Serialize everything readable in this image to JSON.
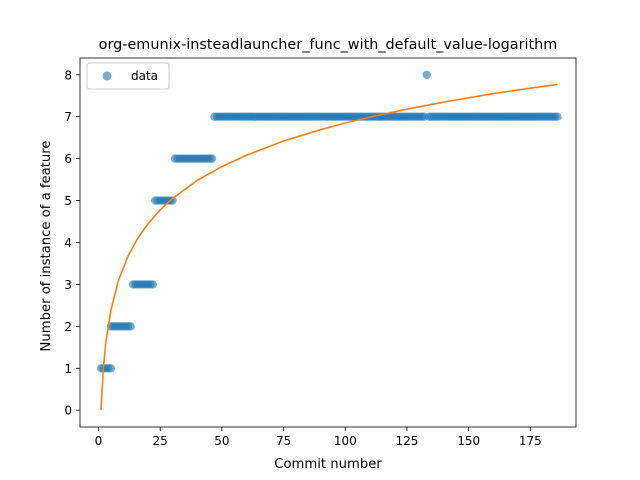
{
  "chart_data": {
    "type": "scatter",
    "title": "org-emunix-insteadlauncher_func_with_default_value-logarithm",
    "xlabel": "Commit number",
    "ylabel": "Number of instance of a feature",
    "xlim": [
      -7.5,
      193.5
    ],
    "ylim": [
      -0.4,
      8.4
    ],
    "xticks": [
      0,
      25,
      50,
      75,
      100,
      125,
      150,
      175
    ],
    "yticks": [
      0,
      1,
      2,
      3,
      4,
      5,
      6,
      7,
      8
    ],
    "grid": false,
    "legend_position": "top-left",
    "colors": {
      "data": "#1f77b4",
      "fit": "#ff7f0e"
    },
    "series": [
      {
        "name": "data",
        "kind": "scatter",
        "points": [
          [
            1,
            1
          ],
          [
            2,
            1
          ],
          [
            3,
            1
          ],
          [
            4,
            1
          ],
          [
            5,
            1
          ],
          [
            5,
            2
          ],
          [
            6,
            2
          ],
          [
            7,
            2
          ],
          [
            8,
            2
          ],
          [
            9,
            2
          ],
          [
            10,
            2
          ],
          [
            11,
            2
          ],
          [
            12,
            2
          ],
          [
            13,
            2
          ],
          [
            14,
            3
          ],
          [
            15,
            3
          ],
          [
            16,
            3
          ],
          [
            17,
            3
          ],
          [
            18,
            3
          ],
          [
            19,
            3
          ],
          [
            20,
            3
          ],
          [
            21,
            3
          ],
          [
            22,
            3
          ],
          [
            23,
            5
          ],
          [
            24,
            5
          ],
          [
            25,
            5
          ],
          [
            26,
            5
          ],
          [
            27,
            5
          ],
          [
            28,
            5
          ],
          [
            29,
            5
          ],
          [
            30,
            5
          ],
          [
            31,
            6
          ],
          [
            32,
            6
          ],
          [
            33,
            6
          ],
          [
            34,
            6
          ],
          [
            35,
            6
          ],
          [
            36,
            6
          ],
          [
            37,
            6
          ],
          [
            38,
            6
          ],
          [
            39,
            6
          ],
          [
            40,
            6
          ],
          [
            41,
            6
          ],
          [
            42,
            6
          ],
          [
            43,
            6
          ],
          [
            44,
            6
          ],
          [
            45,
            6
          ],
          [
            46,
            6
          ],
          [
            47,
            7
          ],
          [
            48,
            7
          ],
          [
            49,
            7
          ],
          [
            50,
            7
          ],
          [
            51,
            7
          ],
          [
            52,
            7
          ],
          [
            53,
            7
          ],
          [
            54,
            7
          ],
          [
            55,
            7
          ],
          [
            56,
            7
          ],
          [
            57,
            7
          ],
          [
            58,
            7
          ],
          [
            59,
            7
          ],
          [
            60,
            7
          ],
          [
            61,
            7
          ],
          [
            62,
            7
          ],
          [
            63,
            7
          ],
          [
            64,
            7
          ],
          [
            65,
            7
          ],
          [
            66,
            7
          ],
          [
            67,
            7
          ],
          [
            68,
            7
          ],
          [
            69,
            7
          ],
          [
            70,
            7
          ],
          [
            71,
            7
          ],
          [
            72,
            7
          ],
          [
            73,
            7
          ],
          [
            74,
            7
          ],
          [
            75,
            7
          ],
          [
            76,
            7
          ],
          [
            77,
            7
          ],
          [
            78,
            7
          ],
          [
            79,
            7
          ],
          [
            80,
            7
          ],
          [
            81,
            7
          ],
          [
            82,
            7
          ],
          [
            83,
            7
          ],
          [
            84,
            7
          ],
          [
            85,
            7
          ],
          [
            86,
            7
          ],
          [
            87,
            7
          ],
          [
            88,
            7
          ],
          [
            89,
            7
          ],
          [
            90,
            7
          ],
          [
            91,
            7
          ],
          [
            92,
            7
          ],
          [
            93,
            7
          ],
          [
            94,
            7
          ],
          [
            95,
            7
          ],
          [
            96,
            7
          ],
          [
            97,
            7
          ],
          [
            98,
            7
          ],
          [
            99,
            7
          ],
          [
            100,
            7
          ],
          [
            101,
            7
          ],
          [
            102,
            7
          ],
          [
            103,
            7
          ],
          [
            104,
            7
          ],
          [
            105,
            7
          ],
          [
            106,
            7
          ],
          [
            107,
            7
          ],
          [
            108,
            7
          ],
          [
            109,
            7
          ],
          [
            110,
            7
          ],
          [
            111,
            7
          ],
          [
            112,
            7
          ],
          [
            113,
            7
          ],
          [
            114,
            7
          ],
          [
            115,
            7
          ],
          [
            116,
            7
          ],
          [
            117,
            7
          ],
          [
            118,
            7
          ],
          [
            119,
            7
          ],
          [
            120,
            7
          ],
          [
            121,
            7
          ],
          [
            122,
            7
          ],
          [
            123,
            7
          ],
          [
            124,
            7
          ],
          [
            125,
            7
          ],
          [
            126,
            7
          ],
          [
            127,
            7
          ],
          [
            128,
            7
          ],
          [
            129,
            7
          ],
          [
            130,
            7
          ],
          [
            131,
            7
          ],
          [
            132,
            7
          ],
          [
            133,
            8
          ],
          [
            134,
            7
          ],
          [
            135,
            7
          ],
          [
            136,
            7
          ],
          [
            137,
            7
          ],
          [
            138,
            7
          ],
          [
            139,
            7
          ],
          [
            140,
            7
          ],
          [
            141,
            7
          ],
          [
            142,
            7
          ],
          [
            143,
            7
          ],
          [
            144,
            7
          ],
          [
            145,
            7
          ],
          [
            146,
            7
          ],
          [
            147,
            7
          ],
          [
            148,
            7
          ],
          [
            149,
            7
          ],
          [
            150,
            7
          ],
          [
            151,
            7
          ],
          [
            152,
            7
          ],
          [
            153,
            7
          ],
          [
            154,
            7
          ],
          [
            155,
            7
          ],
          [
            156,
            7
          ],
          [
            157,
            7
          ],
          [
            158,
            7
          ],
          [
            159,
            7
          ],
          [
            160,
            7
          ],
          [
            161,
            7
          ],
          [
            162,
            7
          ],
          [
            163,
            7
          ],
          [
            164,
            7
          ],
          [
            165,
            7
          ],
          [
            166,
            7
          ],
          [
            167,
            7
          ],
          [
            168,
            7
          ],
          [
            169,
            7
          ],
          [
            170,
            7
          ],
          [
            171,
            7
          ],
          [
            172,
            7
          ],
          [
            173,
            7
          ],
          [
            174,
            7
          ],
          [
            175,
            7
          ],
          [
            176,
            7
          ],
          [
            177,
            7
          ],
          [
            178,
            7
          ],
          [
            179,
            7
          ],
          [
            180,
            7
          ],
          [
            181,
            7
          ],
          [
            182,
            7
          ],
          [
            183,
            7
          ],
          [
            184,
            7
          ],
          [
            185,
            7
          ],
          [
            186,
            7
          ]
        ]
      },
      {
        "kind": "line",
        "model": "logarithm",
        "points": [
          [
            1,
            0
          ],
          [
            2,
            1.03
          ],
          [
            3,
            1.63
          ],
          [
            5,
            2.38
          ],
          [
            8,
            3.08
          ],
          [
            12,
            3.68
          ],
          [
            16,
            4.11
          ],
          [
            20,
            4.44
          ],
          [
            25,
            4.78
          ],
          [
            30,
            5.05
          ],
          [
            40,
            5.48
          ],
          [
            50,
            5.81
          ],
          [
            60,
            6.08
          ],
          [
            75,
            6.42
          ],
          [
            90,
            6.69
          ],
          [
            100,
            6.85
          ],
          [
            110,
            6.99
          ],
          [
            125,
            7.18
          ],
          [
            140,
            7.35
          ],
          [
            150,
            7.45
          ],
          [
            160,
            7.55
          ],
          [
            175,
            7.68
          ],
          [
            186,
            7.77
          ]
        ]
      }
    ]
  }
}
